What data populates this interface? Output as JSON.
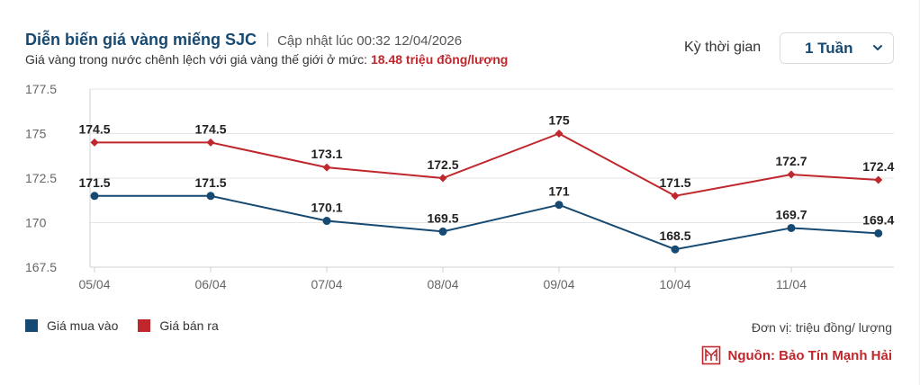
{
  "header": {
    "title": "Diễn biến giá vàng miếng SJC",
    "updated_label": "Cập nhật lúc",
    "updated_time": "00:32 12/04/2026",
    "subtitle_text": "Giá vàng trong nước chênh lệch với giá vàng thế giới ở mức:",
    "subtitle_value": "18.48 triệu đồng/lượng"
  },
  "period": {
    "label": "Kỳ thời gian",
    "selected": "1 Tuần"
  },
  "legend": {
    "buy": "Giá mua vào",
    "sell": "Giá bán ra"
  },
  "footer": {
    "unit": "Đơn vị: triệu đồng/ lượng",
    "source": "Nguồn: Bảo Tín Mạnh Hải"
  },
  "colors": {
    "buy": "#174a72",
    "sell": "#c0272d",
    "grid": "#e6e6e6",
    "axis": "#d0d0d0"
  },
  "chart_data": {
    "type": "line",
    "title": "Diễn biến giá vàng miếng SJC",
    "xlabel": "",
    "ylabel": "triệu đồng/ lượng",
    "ylim": [
      167.5,
      177.5
    ],
    "yticks": [
      177.5,
      175,
      172.5,
      170,
      167.5
    ],
    "ytick_labels": [
      "177.5",
      "175",
      "172.5",
      "170",
      "167.5"
    ],
    "x_tick_labels": [
      "05/04",
      "06/04",
      "07/04",
      "08/04",
      "09/04",
      "10/04",
      "11/04"
    ],
    "x_tick_positions": [
      0,
      1,
      2,
      3,
      4,
      5,
      6
    ],
    "x_range": [
      0,
      6.75
    ],
    "grid": true,
    "legend_position": "bottom-left",
    "series": [
      {
        "name": "Giá mua vào",
        "color": "#174a72",
        "marker": "circle",
        "x": [
          0,
          1,
          2,
          3,
          4,
          5,
          6,
          6.75
        ],
        "values": [
          171.5,
          171.5,
          170.1,
          169.5,
          171,
          168.5,
          169.7,
          169.4
        ],
        "labels": [
          "171.5",
          "171.5",
          "170.1",
          "169.5",
          "171",
          "168.5",
          "169.7",
          "169.4"
        ]
      },
      {
        "name": "Giá bán ra",
        "color": "#c0272d",
        "marker": "diamond",
        "x": [
          0,
          1,
          2,
          3,
          4,
          5,
          6,
          6.75
        ],
        "values": [
          174.5,
          174.5,
          173.1,
          172.5,
          175,
          171.5,
          172.7,
          172.4
        ],
        "labels": [
          "174.5",
          "174.5",
          "173.1",
          "172.5",
          "175",
          "171.5",
          "172.7",
          "172.4"
        ]
      }
    ]
  }
}
